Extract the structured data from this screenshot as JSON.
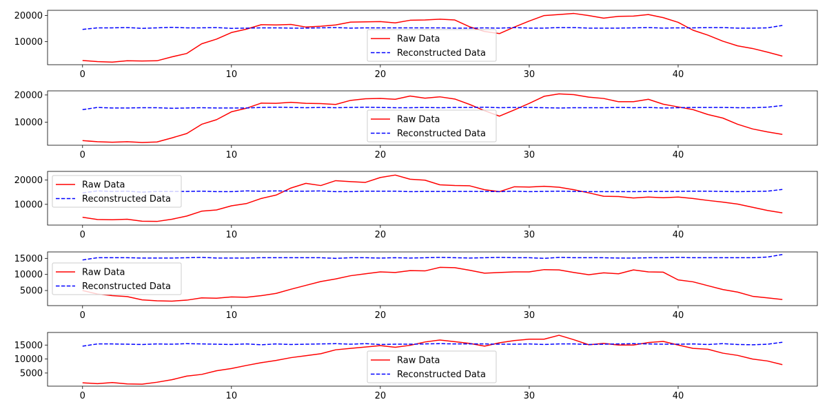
{
  "chart_data": [
    {
      "type": "line",
      "xlim": [
        -2.35,
        49.35
      ],
      "ylim": [
        1200,
        22000
      ],
      "xticks": [
        0,
        10,
        20,
        30,
        40
      ],
      "yticks": [
        10000,
        20000
      ],
      "legend_loc": "bottom-center",
      "series": [
        {
          "name": "Raw Data",
          "color": "#ff0000",
          "style": "solid",
          "values": [
            2800,
            2400,
            2200,
            2700,
            2600,
            2700,
            4200,
            5500,
            9200,
            11000,
            13500,
            14800,
            16500,
            16400,
            16600,
            15600,
            15900,
            16400,
            17500,
            17600,
            17700,
            17200,
            18200,
            18300,
            18600,
            18300,
            15700,
            13900,
            13100,
            15600,
            17900,
            20000,
            20400,
            20800,
            20000,
            19000,
            19700,
            19800,
            20400,
            19200,
            17400,
            14400,
            12500,
            10200,
            8400,
            7400,
            6000,
            4500
          ]
        },
        {
          "name": "Reconstructed Data",
          "color": "#0000ff",
          "style": "dashed",
          "values": [
            14700,
            15300,
            15300,
            15400,
            15100,
            15300,
            15500,
            15300,
            15300,
            15400,
            15100,
            15200,
            15300,
            15300,
            15200,
            15200,
            15300,
            15400,
            15200,
            15300,
            15300,
            15300,
            15300,
            15300,
            15300,
            15200,
            15200,
            15300,
            15200,
            15400,
            15200,
            15200,
            15400,
            15400,
            15200,
            15200,
            15200,
            15300,
            15400,
            15200,
            15300,
            15300,
            15400,
            15400,
            15200,
            15200,
            15300,
            16200
          ]
        }
      ]
    },
    {
      "type": "line",
      "xlim": [
        -2.35,
        49.35
      ],
      "ylim": [
        1500,
        21500
      ],
      "xticks": [
        0,
        10,
        20,
        30,
        40
      ],
      "yticks": [
        10000,
        20000
      ],
      "legend_loc": "bottom-center",
      "series": [
        {
          "name": "Raw Data",
          "color": "#ff0000",
          "style": "solid",
          "values": [
            3200,
            2800,
            2600,
            2800,
            2500,
            2700,
            4200,
            5800,
            9200,
            10900,
            13800,
            15100,
            17000,
            16900,
            17300,
            16900,
            16800,
            16500,
            18000,
            18600,
            18700,
            18400,
            19600,
            18800,
            19300,
            18500,
            16500,
            14200,
            12200,
            14500,
            16900,
            19500,
            20400,
            20100,
            19200,
            18700,
            17500,
            17500,
            18400,
            16600,
            15600,
            14600,
            12800,
            11500,
            9200,
            7500,
            6400,
            5500
          ]
        },
        {
          "name": "Reconstructed Data",
          "color": "#0000ff",
          "style": "dashed",
          "values": [
            14600,
            15400,
            15200,
            15200,
            15300,
            15300,
            15100,
            15200,
            15300,
            15200,
            15200,
            15200,
            15400,
            15500,
            15400,
            15300,
            15400,
            15300,
            15400,
            15500,
            15400,
            15300,
            15300,
            15400,
            15300,
            15400,
            15400,
            15500,
            15300,
            15400,
            15400,
            15300,
            15200,
            15300,
            15300,
            15300,
            15400,
            15300,
            15400,
            15200,
            15300,
            15400,
            15400,
            15400,
            15300,
            15300,
            15500,
            16100
          ]
        }
      ]
    },
    {
      "type": "line",
      "xlim": [
        -2.35,
        49.35
      ],
      "ylim": [
        1500,
        23500
      ],
      "xticks": [
        0,
        10,
        20,
        30,
        40
      ],
      "yticks": [
        10000,
        20000
      ],
      "legend_loc": "upper-left",
      "series": [
        {
          "name": "Raw Data",
          "color": "#ff0000",
          "style": "solid",
          "values": [
            4700,
            3800,
            3700,
            3900,
            3100,
            3000,
            3900,
            5200,
            7200,
            7700,
            9400,
            10300,
            12400,
            13800,
            16700,
            18600,
            17700,
            19700,
            19300,
            19000,
            21000,
            22000,
            20300,
            19900,
            18000,
            17700,
            17600,
            16000,
            15200,
            17200,
            17100,
            17400,
            17000,
            16000,
            14700,
            13300,
            13200,
            12600,
            13000,
            12700,
            13000,
            12400,
            11600,
            10900,
            10100,
            8800,
            7500,
            6500
          ]
        },
        {
          "name": "Reconstructed Data",
          "color": "#0000ff",
          "style": "dashed",
          "values": [
            14700,
            15500,
            15300,
            15400,
            15000,
            15300,
            15300,
            15300,
            15400,
            15200,
            15200,
            15500,
            15400,
            15500,
            15400,
            15400,
            15500,
            15200,
            15200,
            15400,
            15400,
            15400,
            15200,
            15300,
            15300,
            15300,
            15300,
            15300,
            15200,
            15400,
            15200,
            15300,
            15400,
            15300,
            15200,
            15200,
            15200,
            15200,
            15300,
            15300,
            15300,
            15400,
            15400,
            15300,
            15200,
            15300,
            15400,
            16100
          ]
        }
      ]
    },
    {
      "type": "line",
      "xlim": [
        -2.35,
        49.35
      ],
      "ylim": [
        300,
        17000
      ],
      "xticks": [
        0,
        10,
        20,
        30,
        40
      ],
      "yticks": [
        5000,
        10000,
        15000
      ],
      "legend_loc": "center-left",
      "series": [
        {
          "name": "Raw Data",
          "color": "#ff0000",
          "style": "solid",
          "values": [
            5000,
            3900,
            3400,
            3100,
            2100,
            1800,
            1700,
            2000,
            2700,
            2600,
            3000,
            2900,
            3400,
            4100,
            5400,
            6600,
            7800,
            8600,
            9600,
            10200,
            10800,
            10600,
            11200,
            11100,
            12200,
            12100,
            11300,
            10400,
            10600,
            10800,
            10800,
            11500,
            11400,
            10600,
            9900,
            10500,
            10200,
            11400,
            10800,
            10700,
            8300,
            7700,
            6500,
            5300,
            4500,
            3200,
            2700,
            2200
          ]
        },
        {
          "name": "Reconstructed Data",
          "color": "#0000ff",
          "style": "dashed",
          "values": [
            14500,
            15200,
            15200,
            15200,
            15100,
            15100,
            15100,
            15200,
            15300,
            15100,
            15100,
            15100,
            15200,
            15200,
            15200,
            15200,
            15200,
            15000,
            15200,
            15200,
            15100,
            15200,
            15100,
            15200,
            15300,
            15200,
            15100,
            15200,
            15300,
            15200,
            15200,
            15000,
            15300,
            15200,
            15200,
            15200,
            15100,
            15100,
            15200,
            15200,
            15300,
            15200,
            15200,
            15200,
            15200,
            15200,
            15400,
            16200
          ]
        }
      ]
    },
    {
      "type": "line",
      "xlim": [
        -2.35,
        49.35
      ],
      "ylim": [
        300,
        19500
      ],
      "xticks": [
        0,
        10,
        20,
        30,
        40
      ],
      "yticks": [
        5000,
        10000,
        15000
      ],
      "legend_loc": "bottom-center",
      "series": [
        {
          "name": "Raw Data",
          "color": "#ff0000",
          "style": "solid",
          "values": [
            1500,
            1200,
            1600,
            1100,
            1000,
            1700,
            2600,
            3900,
            4500,
            5800,
            6600,
            7700,
            8700,
            9500,
            10500,
            11200,
            11900,
            13300,
            13800,
            14300,
            14800,
            14200,
            14900,
            16100,
            16800,
            16200,
            15600,
            14600,
            15800,
            16600,
            17100,
            17100,
            18500,
            16900,
            15100,
            15600,
            15000,
            15000,
            15900,
            16300,
            15000,
            13800,
            13500,
            12100,
            11300,
            10000,
            9300,
            8000
          ]
        },
        {
          "name": "Reconstructed Data",
          "color": "#0000ff",
          "style": "dashed",
          "values": [
            14600,
            15400,
            15400,
            15300,
            15200,
            15400,
            15300,
            15500,
            15400,
            15300,
            15200,
            15400,
            15100,
            15400,
            15200,
            15300,
            15400,
            15500,
            15300,
            15500,
            15200,
            15300,
            15300,
            15400,
            15500,
            15400,
            15400,
            15400,
            15300,
            15300,
            15400,
            15200,
            15400,
            15400,
            15200,
            15300,
            15400,
            15500,
            15400,
            15300,
            15300,
            15400,
            15200,
            15500,
            15200,
            15100,
            15300,
            16000
          ]
        }
      ]
    }
  ]
}
